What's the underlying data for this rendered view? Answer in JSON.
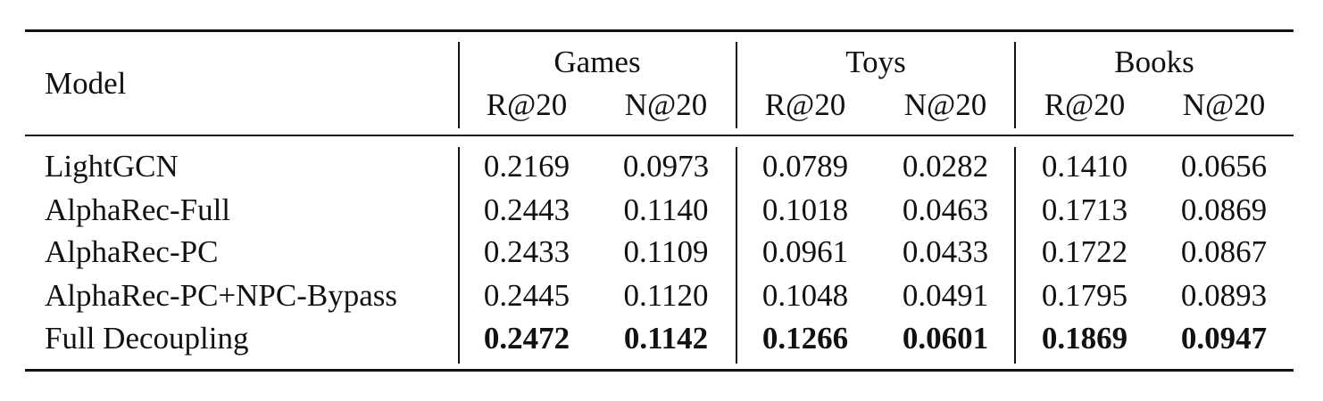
{
  "table": {
    "model_header": "Model",
    "datasets": [
      "Games",
      "Toys",
      "Books"
    ],
    "metrics": [
      "R@20",
      "N@20",
      "R@20",
      "N@20",
      "R@20",
      "N@20"
    ],
    "rows": [
      {
        "model": "LightGCN",
        "values": [
          "0.2169",
          "0.0973",
          "0.0789",
          "0.0282",
          "0.1410",
          "0.0656"
        ],
        "bold": false
      },
      {
        "model": "AlphaRec-Full",
        "values": [
          "0.2443",
          "0.1140",
          "0.1018",
          "0.0463",
          "0.1713",
          "0.0869"
        ],
        "bold": false
      },
      {
        "model": "AlphaRec-PC",
        "values": [
          "0.2433",
          "0.1109",
          "0.0961",
          "0.0433",
          "0.1722",
          "0.0867"
        ],
        "bold": false
      },
      {
        "model": "AlphaRec-PC+NPC-Bypass",
        "values": [
          "0.2445",
          "0.1120",
          "0.1048",
          "0.0491",
          "0.1795",
          "0.0893"
        ],
        "bold": false
      },
      {
        "model": "Full Decoupling",
        "values": [
          "0.2472",
          "0.1142",
          "0.1266",
          "0.0601",
          "0.1869",
          "0.0947"
        ],
        "bold": true
      }
    ]
  }
}
